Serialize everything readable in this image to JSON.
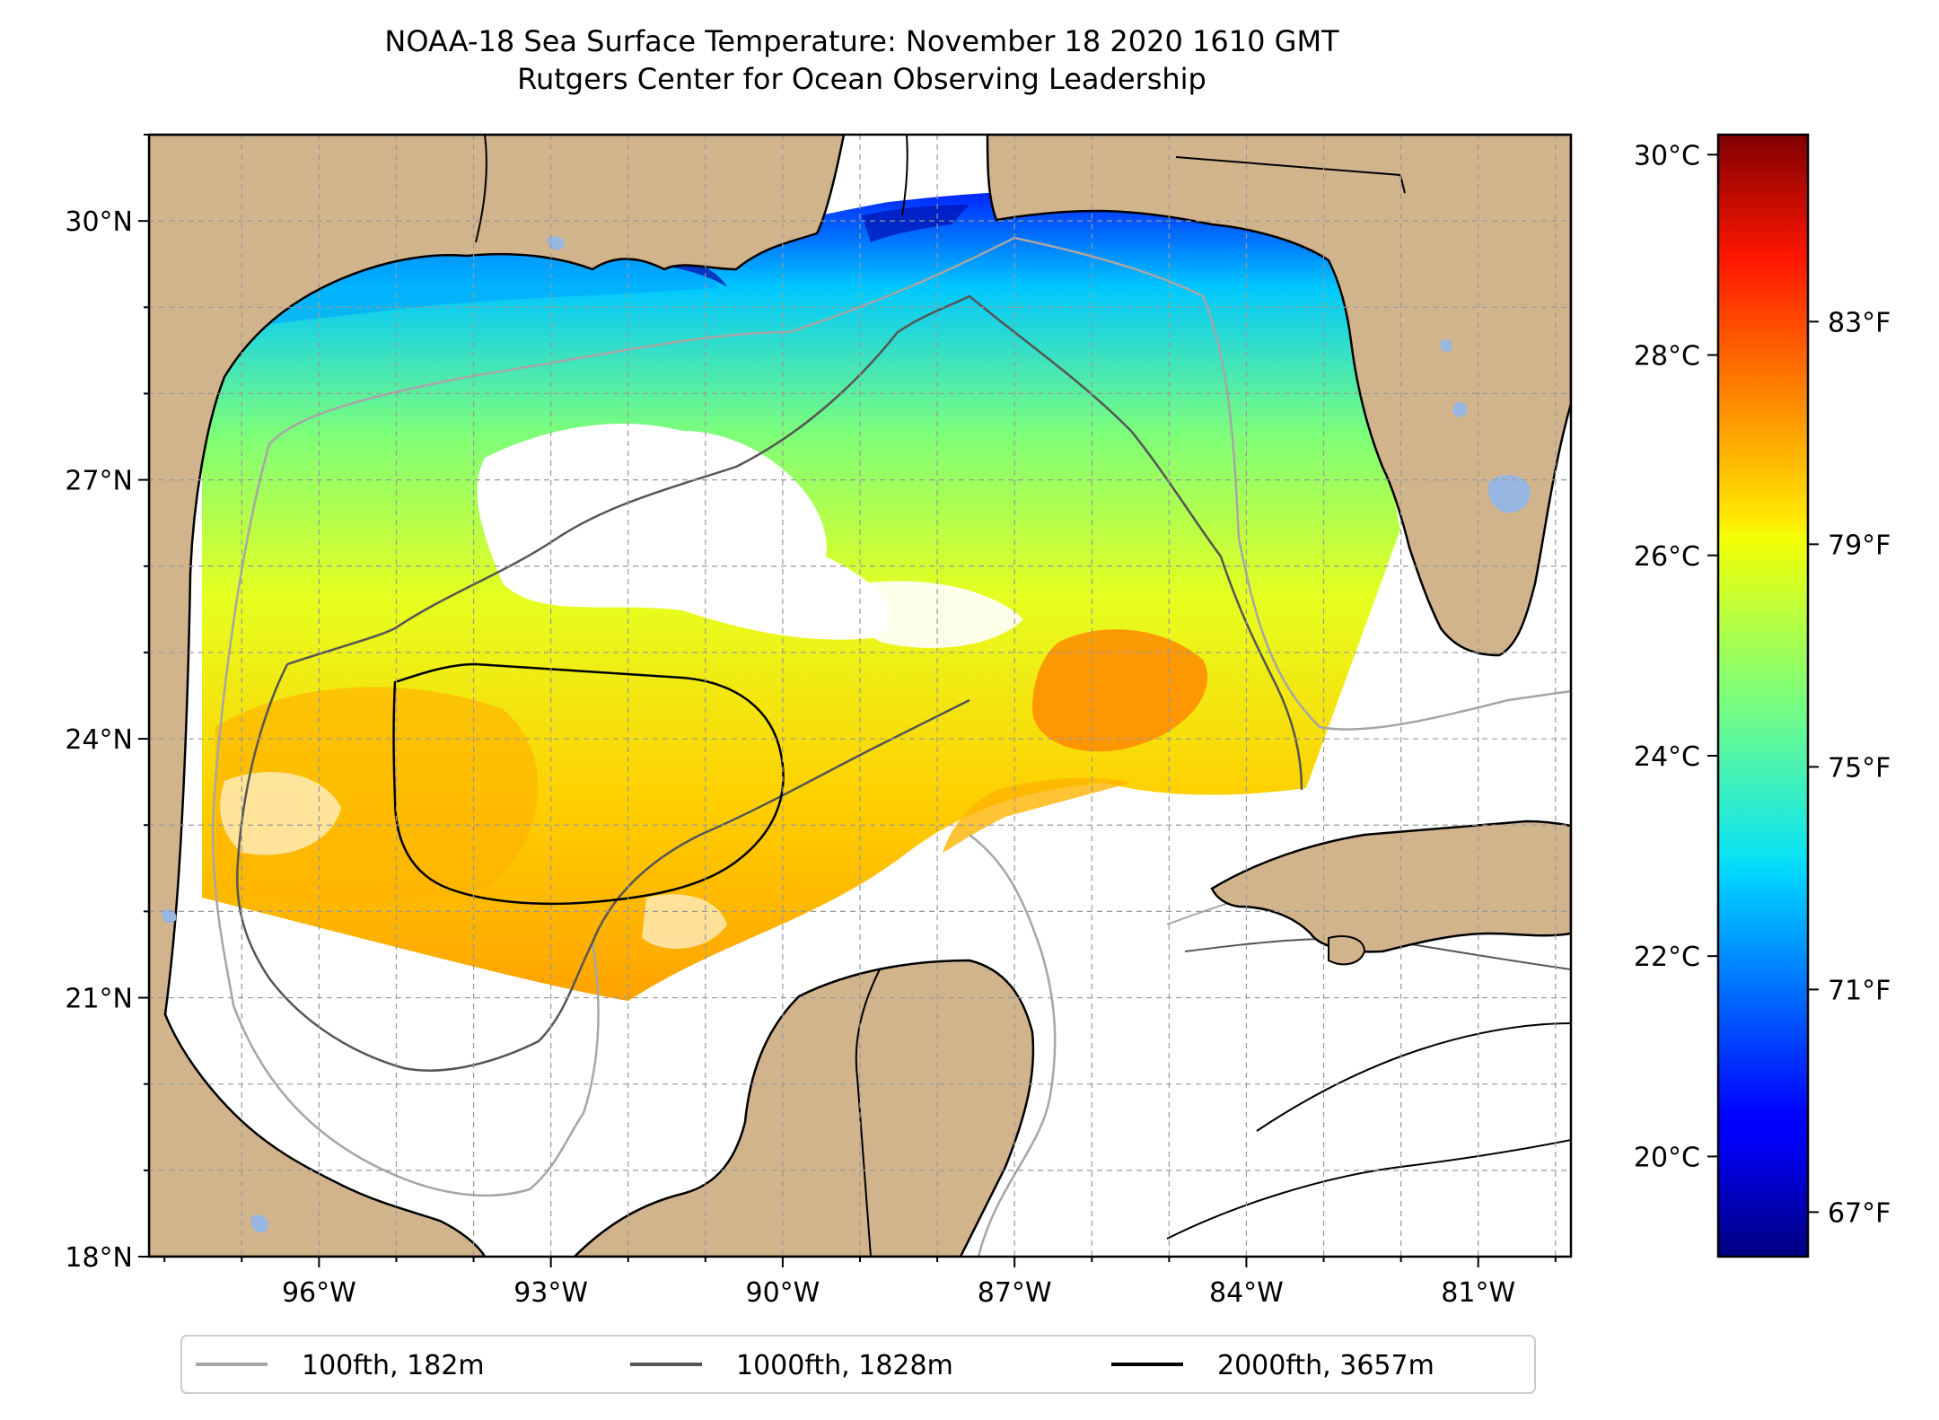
{
  "title_line1": "NOAA-18 Sea Surface Temperature: November 18 2020 1610 GMT",
  "title_line2": "Rutgers Center for Ocean Observing Leadership",
  "map": {
    "lon_range": [
      -98.2,
      -79.8
    ],
    "lat_range": [
      18,
      31
    ],
    "lon_ticks": [
      {
        "value": -96,
        "label": "96°W"
      },
      {
        "value": -93,
        "label": "93°W"
      },
      {
        "value": -90,
        "label": "90°W"
      },
      {
        "value": -87,
        "label": "87°W"
      },
      {
        "value": -84,
        "label": "84°W"
      },
      {
        "value": -81,
        "label": "81°W"
      }
    ],
    "lat_ticks": [
      {
        "value": 18,
        "label": "18°N"
      },
      {
        "value": 21,
        "label": "21°N"
      },
      {
        "value": 24,
        "label": "24°N"
      },
      {
        "value": 27,
        "label": "27°N"
      },
      {
        "value": 30,
        "label": "30°N"
      }
    ],
    "gridlines": true,
    "colors": {
      "land": "#d2b48c",
      "ocean_no_data": "#ffffff",
      "lakes": "#97b6e1",
      "coastline": "#000000"
    }
  },
  "legend": {
    "placement": "bottom-center",
    "entries": [
      {
        "label": "100fth, 182m",
        "color": "#a6a6a6"
      },
      {
        "label": "1000fth, 1828m",
        "color": "#555555"
      },
      {
        "label": "2000fth, 3657m",
        "color": "#000000"
      }
    ]
  },
  "colorbar": {
    "colormap": "jet",
    "range_c": [
      19,
      30.2
    ],
    "celsius_ticks": [
      {
        "value": 20,
        "label": "20°C"
      },
      {
        "value": 22,
        "label": "22°C"
      },
      {
        "value": 24,
        "label": "24°C"
      },
      {
        "value": 26,
        "label": "26°C"
      },
      {
        "value": 28,
        "label": "28°C"
      },
      {
        "value": 30,
        "label": "30°C"
      }
    ],
    "fahrenheit_ticks": [
      {
        "value": 67,
        "label": "67°F"
      },
      {
        "value": 71,
        "label": "71°F"
      },
      {
        "value": 75,
        "label": "75°F"
      },
      {
        "value": 79,
        "label": "79°F"
      },
      {
        "value": 83,
        "label": "83°F"
      }
    ]
  }
}
